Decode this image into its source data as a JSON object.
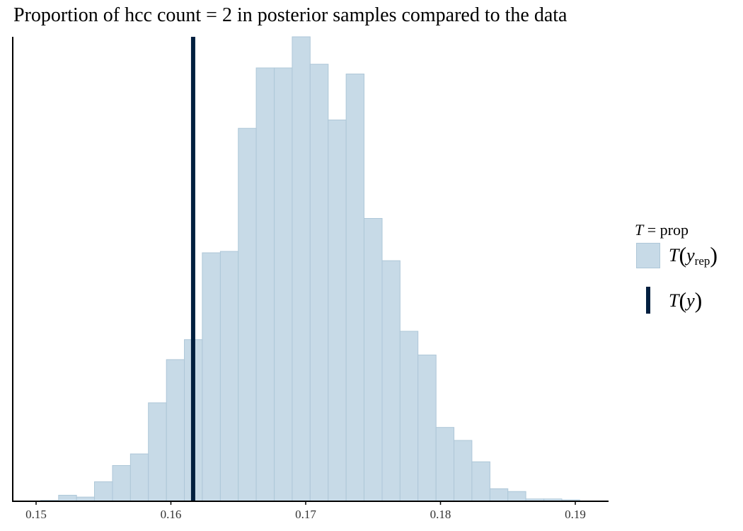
{
  "title": "Proportion of hcc count = 2 in posterior samples compared to the data",
  "legend": {
    "title_symbol": "T",
    "title_rest": " = prop",
    "rep_fn": "T",
    "rep_var": "y",
    "rep_sub": "rep",
    "obs_fn": "T",
    "obs_var": "y"
  },
  "colors": {
    "histogram_fill": "#c7dae7",
    "histogram_stroke": "#aec7d8",
    "observed_line": "#011f3f",
    "axis": "#000000"
  },
  "chart_data": {
    "type": "histogram",
    "title": "Proportion of hcc count = 2 in posterior samples compared to the data",
    "xlabel": "",
    "ylabel": "",
    "xlim": [
      0.1495,
      0.1925
    ],
    "ylim": [
      0,
      1.0
    ],
    "x_ticks": [
      0.15,
      0.16,
      0.17,
      0.18,
      0.19
    ],
    "x_tick_labels": [
      "0.15",
      "0.16",
      "0.17",
      "0.18",
      "0.19"
    ],
    "y_axis_ticks": false,
    "grid": false,
    "legend_position": "right",
    "bin_width": 0.001333,
    "bins": [
      {
        "x0": 0.15033,
        "x1": 0.15167,
        "height": 0.002
      },
      {
        "x0": 0.15167,
        "x1": 0.153,
        "height": 0.013
      },
      {
        "x0": 0.153,
        "x1": 0.15433,
        "height": 0.009
      },
      {
        "x0": 0.15433,
        "x1": 0.15567,
        "height": 0.042
      },
      {
        "x0": 0.15567,
        "x1": 0.157,
        "height": 0.077
      },
      {
        "x0": 0.157,
        "x1": 0.15833,
        "height": 0.102
      },
      {
        "x0": 0.15833,
        "x1": 0.15967,
        "height": 0.212
      },
      {
        "x0": 0.15967,
        "x1": 0.161,
        "height": 0.305
      },
      {
        "x0": 0.161,
        "x1": 0.16233,
        "height": 0.348
      },
      {
        "x0": 0.16233,
        "x1": 0.16367,
        "height": 0.535
      },
      {
        "x0": 0.16367,
        "x1": 0.165,
        "height": 0.538
      },
      {
        "x0": 0.165,
        "x1": 0.16633,
        "height": 0.803
      },
      {
        "x0": 0.16633,
        "x1": 0.16767,
        "height": 0.933
      },
      {
        "x0": 0.16767,
        "x1": 0.169,
        "height": 0.933
      },
      {
        "x0": 0.169,
        "x1": 0.17033,
        "height": 1.0
      },
      {
        "x0": 0.17033,
        "x1": 0.17167,
        "height": 0.941
      },
      {
        "x0": 0.17167,
        "x1": 0.173,
        "height": 0.821
      },
      {
        "x0": 0.173,
        "x1": 0.17433,
        "height": 0.92
      },
      {
        "x0": 0.17433,
        "x1": 0.17567,
        "height": 0.609
      },
      {
        "x0": 0.17567,
        "x1": 0.177,
        "height": 0.518
      },
      {
        "x0": 0.177,
        "x1": 0.17833,
        "height": 0.366
      },
      {
        "x0": 0.17833,
        "x1": 0.17967,
        "height": 0.315
      },
      {
        "x0": 0.17967,
        "x1": 0.181,
        "height": 0.159
      },
      {
        "x0": 0.181,
        "x1": 0.18233,
        "height": 0.131
      },
      {
        "x0": 0.18233,
        "x1": 0.18367,
        "height": 0.085
      },
      {
        "x0": 0.18367,
        "x1": 0.185,
        "height": 0.027
      },
      {
        "x0": 0.185,
        "x1": 0.18633,
        "height": 0.021
      },
      {
        "x0": 0.18633,
        "x1": 0.18767,
        "height": 0.005
      },
      {
        "x0": 0.18767,
        "x1": 0.189,
        "height": 0.005
      },
      {
        "x0": 0.189,
        "x1": 0.19033,
        "height": 0.003
      }
    ],
    "observed_value": 0.16165
  }
}
